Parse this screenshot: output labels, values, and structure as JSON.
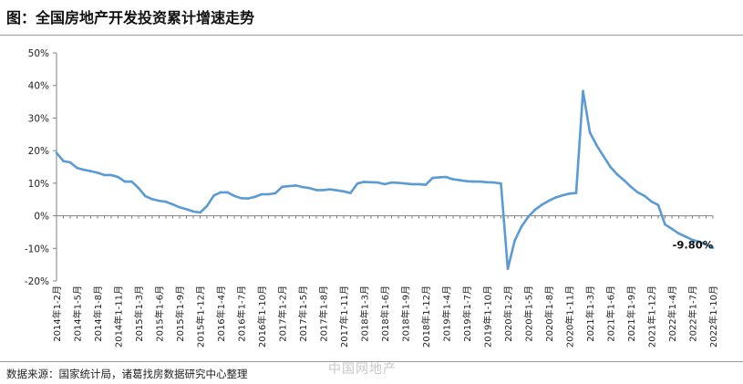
{
  "header": {
    "title": "图：全国房地产开发投资累计增速走势"
  },
  "footer": {
    "source": "数据来源：国家统计局，诸葛找房数据研究中心整理",
    "watermark": "中国网地产"
  },
  "chart_data": {
    "type": "line",
    "title": "",
    "xlabel": "",
    "ylabel": "",
    "ylim": [
      -20,
      50
    ],
    "yticks": [
      -20,
      -10,
      0,
      10,
      20,
      30,
      40,
      50
    ],
    "ytick_labels": [
      "-20%",
      "-10%",
      "0%",
      "10%",
      "20%",
      "30%",
      "40%",
      "50%"
    ],
    "x_tick_labels": [
      "2014年1-2月",
      "2014年1-5月",
      "2014年1-8月",
      "2014年1-11月",
      "2015年1-3月",
      "2015年1-6月",
      "2015年1-9月",
      "2015年1-12月",
      "2016年1-4月",
      "2016年1-7月",
      "2016年1-10月",
      "2017年1-2月",
      "2017年1-5月",
      "2017年1-8月",
      "2017年1-11月",
      "2018年1-3月",
      "2018年1-6月",
      "2018年1-9月",
      "2018年1-12月",
      "2019年1-4月",
      "2019年1-7月",
      "2019年1-10月",
      "2020年1-2月",
      "2020年1-5月",
      "2020年1-8月",
      "2020年1-11月",
      "2021年1-3月",
      "2021年1-6月",
      "2021年1-9月",
      "2021年1-12月",
      "2022年1-4月",
      "2022年1-7月",
      "2022年1-10月"
    ],
    "series": [
      {
        "color": "#5b9bd5",
        "values": [
          19.3,
          16.8,
          16.4,
          14.7,
          14.1,
          13.7,
          13.2,
          12.5,
          12.5,
          11.9,
          10.5,
          10.5,
          8.5,
          6.0,
          5.1,
          4.6,
          4.3,
          3.5,
          2.6,
          2.0,
          1.3,
          1.0,
          3.0,
          6.2,
          7.2,
          7.2,
          6.1,
          5.4,
          5.3,
          5.8,
          6.6,
          6.6,
          6.9,
          8.9,
          9.1,
          9.3,
          8.8,
          8.5,
          7.9,
          7.9,
          8.1,
          7.8,
          7.5,
          7.0,
          9.9,
          10.4,
          10.3,
          10.2,
          9.7,
          10.2,
          10.1,
          9.9,
          9.7,
          9.7,
          9.5,
          11.6,
          11.8,
          11.9,
          11.2,
          10.9,
          10.6,
          10.5,
          10.5,
          10.3,
          10.2,
          9.9,
          -16.3,
          -7.7,
          -3.3,
          -0.3,
          1.9,
          3.4,
          4.6,
          5.6,
          6.3,
          6.8,
          7.0,
          38.3,
          25.6,
          21.6,
          18.3,
          15.0,
          12.7,
          10.9,
          8.9,
          7.2,
          6.1,
          4.4,
          3.3,
          -2.7,
          -4.0,
          -5.4,
          -6.4,
          -7.4,
          -8.0,
          -8.8,
          -9.8
        ]
      }
    ],
    "last_label": "-9.80%"
  }
}
